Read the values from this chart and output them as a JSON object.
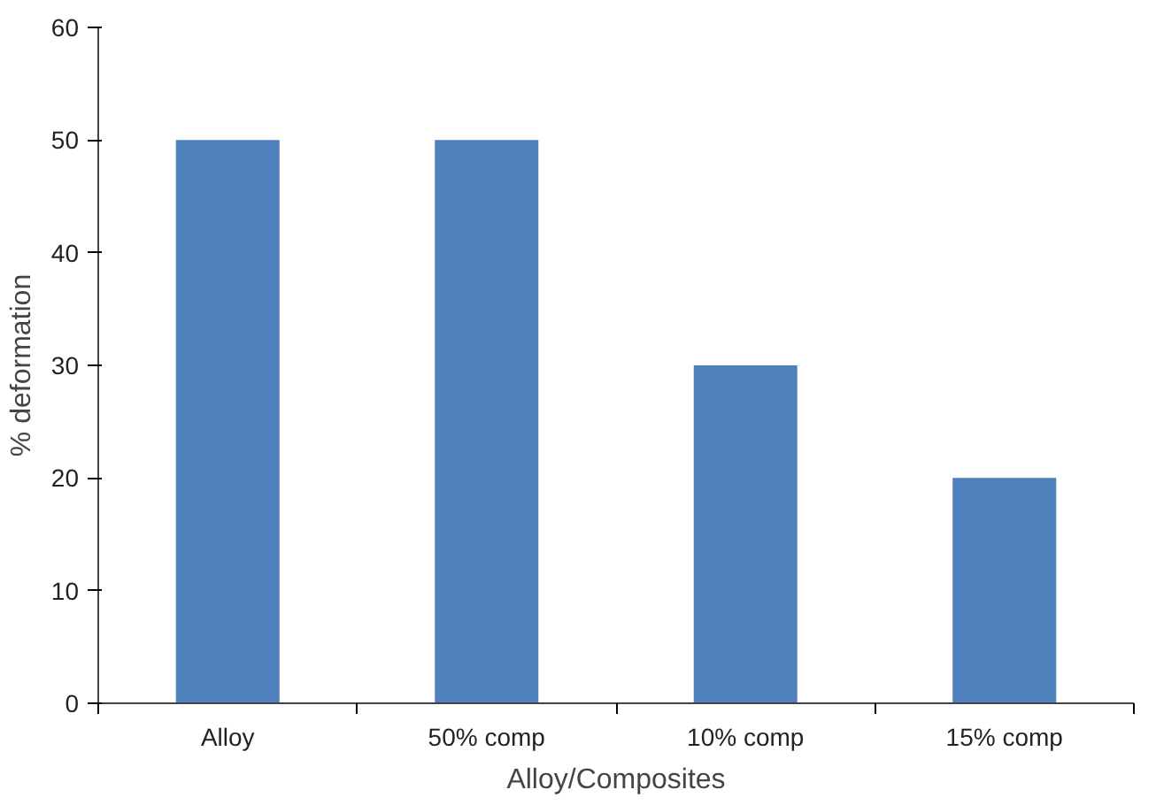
{
  "chart_data": {
    "type": "bar",
    "xlabel": "Alloy/Composites",
    "ylabel": "% deformation",
    "categories": [
      "Alloy",
      "50% comp",
      "10% comp",
      "15% comp"
    ],
    "values": [
      50,
      50,
      30,
      20
    ],
    "color": "#4f81bd",
    "ylim": [
      0,
      60
    ],
    "yticks": [
      0,
      10,
      20,
      30,
      40,
      50,
      60
    ],
    "grid": false
  }
}
